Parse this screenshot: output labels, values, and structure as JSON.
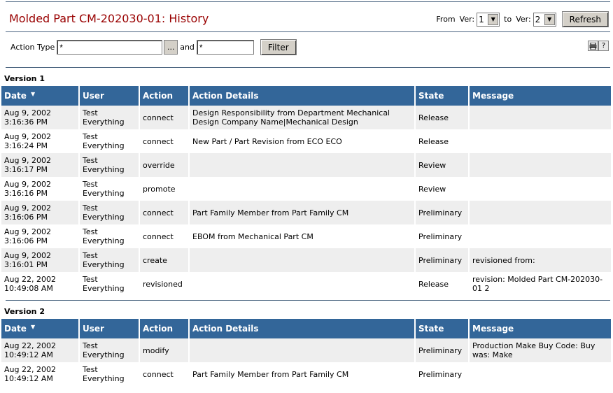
{
  "page": {
    "title": "Molded Part CM-202030-01: History"
  },
  "version_select": {
    "from_label": "From",
    "ver_label_1": "Ver:",
    "from_value": "1",
    "to_label": "to",
    "ver_label_2": "Ver:",
    "to_value": "2",
    "refresh_label": "Refresh"
  },
  "filter": {
    "action_type_label": "Action Type",
    "action_type_value": "*",
    "browse_label": "...",
    "and_label": "and",
    "second_value": "*",
    "filter_label": "Filter"
  },
  "tools": {
    "print_icon": "printer-icon",
    "help_label": "?"
  },
  "columns": {
    "date": "Date",
    "user": "User",
    "action": "Action",
    "details": "Action Details",
    "state": "State",
    "message": "Message"
  },
  "versions": [
    {
      "label": "Version 1",
      "rows": [
        {
          "date1": "Aug 9, 2002",
          "date2": "3:16:36 PM",
          "user1": "Test",
          "user2": "Everything",
          "action": "connect",
          "details": " Design Responsibility from Department Mechanical Design Company Name|Mechanical Design",
          "state": "Release",
          "message": ""
        },
        {
          "date1": "Aug 9, 2002",
          "date2": "3:16:24 PM",
          "user1": "Test",
          "user2": "Everything",
          "action": "connect",
          "details": "New Part / Part Revision from ECO ECO",
          "state": "Release",
          "message": ""
        },
        {
          "date1": "Aug 9, 2002",
          "date2": "3:16:17 PM",
          "user1": "Test",
          "user2": "Everything",
          "action": "override",
          "details": "",
          "state": "Review",
          "message": ""
        },
        {
          "date1": "Aug 9, 2002",
          "date2": "3:16:16 PM",
          "user1": "Test",
          "user2": "Everything",
          "action": "promote",
          "details": "",
          "state": "Review",
          "message": ""
        },
        {
          "date1": "Aug 9, 2002",
          "date2": "3:16:06 PM",
          "user1": "Test",
          "user2": "Everything",
          "action": "connect",
          "details": "Part Family Member from Part Family CM",
          "state": "Preliminary",
          "message": ""
        },
        {
          "date1": "Aug 9, 2002",
          "date2": "3:16:06 PM",
          "user1": "Test",
          "user2": "Everything",
          "action": "connect",
          "details": "EBOM from Mechanical Part CM",
          "state": "Preliminary",
          "message": ""
        },
        {
          "date1": "Aug 9, 2002",
          "date2": "3:16:01 PM",
          "user1": "Test",
          "user2": "Everything",
          "action": "create",
          "details": "",
          "state": "Preliminary",
          "message": "revisioned from:"
        },
        {
          "date1": "Aug 22, 2002",
          "date2": "10:49:08 AM",
          "user1": "Test",
          "user2": "Everything",
          "action": "revisioned",
          "details": "",
          "state": "Release",
          "message": "revision: Molded Part CM-202030-01 2"
        }
      ]
    },
    {
      "label": "Version 2",
      "rows": [
        {
          "date1": "Aug 22, 2002",
          "date2": "10:49:12 AM",
          "user1": "Test",
          "user2": "Everything",
          "action": "modify",
          "details": "",
          "state": "Preliminary",
          "message": "Production Make Buy Code: Buy was: Make"
        },
        {
          "date1": "Aug 22, 2002",
          "date2": "10:49:12 AM",
          "user1": "Test",
          "user2": "Everything",
          "action": "connect",
          "details": "Part Family Member from Part Family CM",
          "state": "Preliminary",
          "message": ""
        }
      ]
    }
  ]
}
